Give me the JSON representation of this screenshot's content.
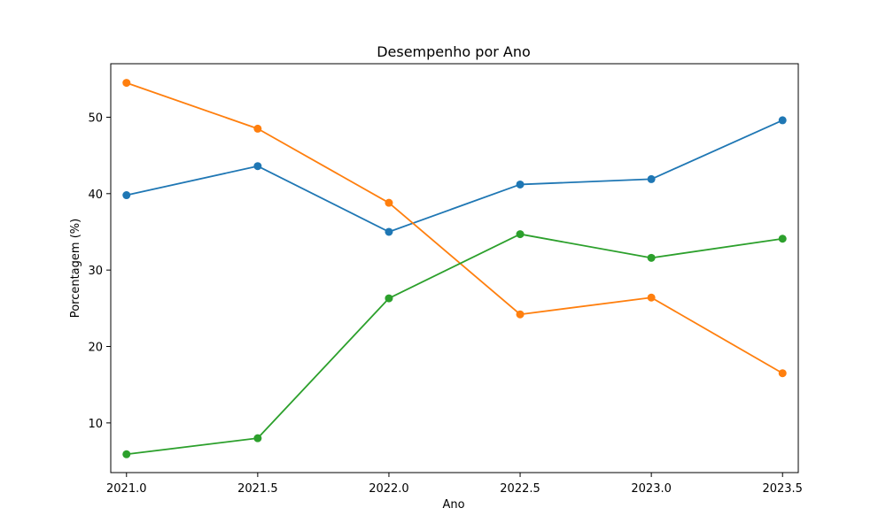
{
  "chart_data": {
    "type": "line",
    "title": "Desempenho por Ano",
    "xlabel": "Ano",
    "ylabel": "Porcentagem (%)",
    "x": [
      2021.0,
      2021.5,
      2022.0,
      2022.5,
      2023.0,
      2023.5
    ],
    "x_ticks": [
      2021.0,
      2021.5,
      2022.0,
      2022.5,
      2023.0,
      2023.5
    ],
    "x_tick_labels": [
      "2021.0",
      "2021.5",
      "2022.0",
      "2022.5",
      "2023.0",
      "2023.5"
    ],
    "y_ticks": [
      10,
      20,
      30,
      40,
      50
    ],
    "y_tick_labels": [
      "10",
      "20",
      "30",
      "40",
      "50"
    ],
    "xlim": [
      2020.94,
      2023.56
    ],
    "ylim": [
      3.5,
      57.0
    ],
    "grid": false,
    "markers": "circle",
    "series": [
      {
        "color": "#1f77b4",
        "values": [
          39.8,
          43.6,
          35.0,
          41.2,
          41.9,
          49.6
        ]
      },
      {
        "color": "#ff7f0e",
        "values": [
          54.5,
          48.5,
          38.8,
          24.2,
          26.4,
          16.5
        ]
      },
      {
        "color": "#2ca02c",
        "values": [
          5.9,
          8.0,
          26.3,
          34.7,
          31.6,
          34.1
        ]
      }
    ]
  }
}
